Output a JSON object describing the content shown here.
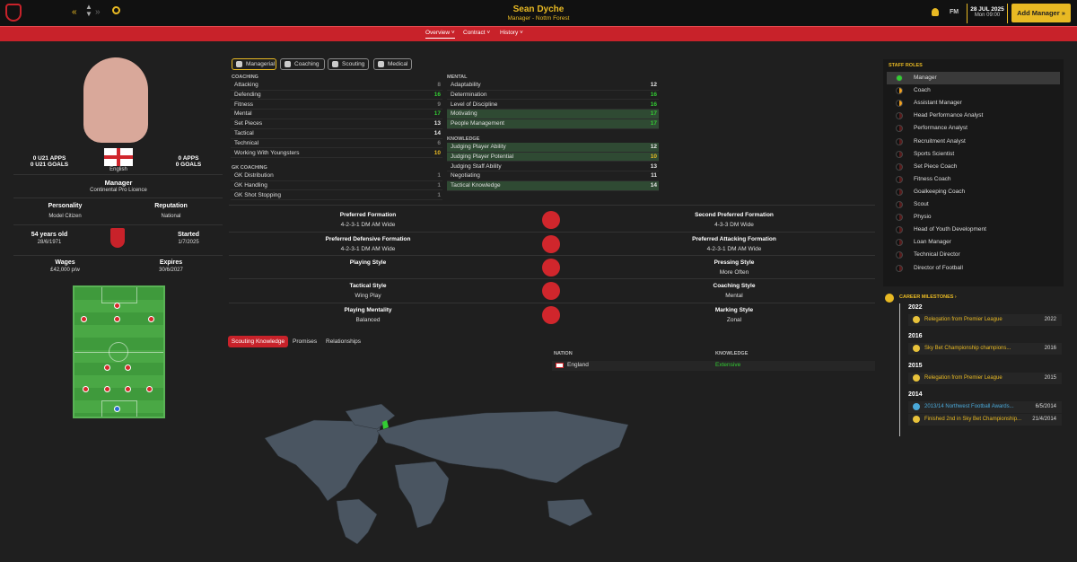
{
  "header": {
    "name": "Sean Dyche",
    "subtitle": "Manager - Nottm Forest",
    "fm": "FM",
    "date": "28 JUL 2025",
    "time": "Mon 09:00",
    "add_manager": "Add Manager"
  },
  "subnav": {
    "overview": "Overview",
    "contract": "Contract",
    "history": "History"
  },
  "profile": {
    "u21_apps": "0 U21 APPS",
    "u21_goals": "0 U21 GOALS",
    "apps": "0 APPS",
    "goals": "0 GOALS",
    "nationality": "English",
    "role": "Manager",
    "licence": "Continental Pro Licence",
    "personality_label": "Personality",
    "personality": "Model Citizen",
    "reputation_label": "Reputation",
    "reputation": "National",
    "age": "54 years old",
    "dob": "28/6/1971",
    "started_label": "Started",
    "started": "1/7/2025",
    "wages_label": "Wages",
    "wages": "£42,000 p/w",
    "expires_label": "Expires",
    "expires": "30/6/2027"
  },
  "tabs": {
    "managerial": "Managerial",
    "coaching": "Coaching",
    "scouting": "Scouting",
    "medical": "Medical"
  },
  "coaching": {
    "title": "COACHING",
    "rows": [
      {
        "label": "Attacking",
        "value": "8"
      },
      {
        "label": "Defending",
        "value": "16"
      },
      {
        "label": "Fitness",
        "value": "9"
      },
      {
        "label": "Mental",
        "value": "17"
      },
      {
        "label": "Set Pieces",
        "value": "13"
      },
      {
        "label": "Tactical",
        "value": "14"
      },
      {
        "label": "Technical",
        "value": "6"
      },
      {
        "label": "Working With Youngsters",
        "value": "10"
      }
    ]
  },
  "gk": {
    "title": "GK COACHING",
    "rows": [
      {
        "label": "GK Distribution",
        "value": "1"
      },
      {
        "label": "GK Handling",
        "value": "1"
      },
      {
        "label": "GK Shot Stopping",
        "value": "1"
      }
    ]
  },
  "mental": {
    "title": "MENTAL",
    "rows": [
      {
        "label": "Adaptability",
        "value": "12"
      },
      {
        "label": "Determination",
        "value": "16"
      },
      {
        "label": "Level of Discipline",
        "value": "16"
      },
      {
        "label": "Motivating",
        "value": "17"
      },
      {
        "label": "People Management",
        "value": "17"
      }
    ]
  },
  "knowledge": {
    "title": "KNOWLEDGE",
    "rows": [
      {
        "label": "Judging Player Ability",
        "value": "12"
      },
      {
        "label": "Judging Player Potential",
        "value": "10"
      },
      {
        "label": "Judging Staff Ability",
        "value": "13"
      },
      {
        "label": "Negotiating",
        "value": "11"
      },
      {
        "label": "Tactical Knowledge",
        "value": "14"
      }
    ]
  },
  "tactics": {
    "pref_formation_label": "Preferred Formation",
    "pref_formation": "4-2-3-1 DM AM Wide",
    "second_formation_label": "Second Preferred Formation",
    "second_formation": "4-3-3 DM Wide",
    "def_formation_label": "Preferred Defensive Formation",
    "def_formation": "4-2-3-1 DM AM Wide",
    "att_formation_label": "Preferred Attacking Formation",
    "att_formation": "4-2-3-1 DM AM Wide",
    "playing_style_label": "Playing Style",
    "playing_style": "",
    "pressing_label": "Pressing Style",
    "pressing": "More Often",
    "tactical_style_label": "Tactical Style",
    "tactical_style": "Wing Play",
    "coaching_style_label": "Coaching Style",
    "coaching_style": "Mental",
    "mentality_label": "Playing Mentality",
    "mentality": "Balanced",
    "marking_label": "Marking Style",
    "marking": "Zonal"
  },
  "bottom_tabs": {
    "scouting": "Scouting Knowledge",
    "promises": "Promises",
    "relationships": "Relationships"
  },
  "scout_table": {
    "nation_h": "NATION",
    "knowledge_h": "KNOWLEDGE",
    "nation": "England",
    "knowledge": "Extensive"
  },
  "staff_roles": {
    "title": "STAFF ROLES",
    "items": [
      "Manager",
      "Coach",
      "Assistant Manager",
      "Head Performance Analyst",
      "Performance Analyst",
      "Recruitment Analyst",
      "Sports Scientist",
      "Set Piece Coach",
      "Fitness Coach",
      "Goalkeeping Coach",
      "Scout",
      "Physio",
      "Head of Youth Development",
      "Loan Manager",
      "Technical Director",
      "Director of Football"
    ]
  },
  "milestones": {
    "title": "CAREER MILESTONES",
    "y2022": "2022",
    "y2016": "2016",
    "y2015": "2015",
    "y2014": "2014",
    "m1": "Relegation from Premier League",
    "m1d": "2022",
    "m2": "Sky Bet Championship champions...",
    "m2d": "2016",
    "m3": "Relegation from Premier League",
    "m3d": "2015",
    "m4": "2013/14 Northwest Football Awards...",
    "m4d": "6/5/2014",
    "m5": "Finished 2nd in Sky Bet Championship...",
    "m5d": "21/4/2014"
  },
  "colors": {
    "accent": "#e8b923",
    "red": "#c8222a",
    "green": "#33cc33"
  }
}
